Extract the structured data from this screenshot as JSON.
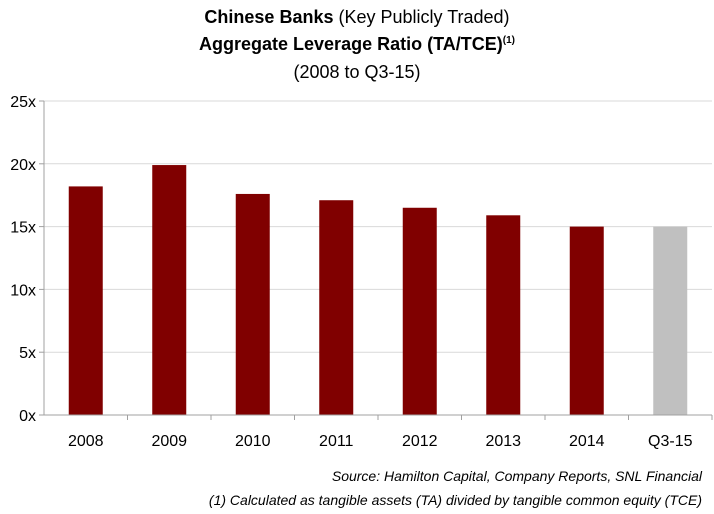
{
  "title": {
    "line1_bold": "Chinese Banks",
    "line1_rest": " (Key Publicly Traded)",
    "line2": "Aggregate Leverage Ratio (TA/TCE)",
    "line2_sup": "(1)",
    "line3": "(2008 to Q3-15)"
  },
  "chart_data": {
    "type": "bar",
    "categories": [
      "2008",
      "2009",
      "2010",
      "2011",
      "2012",
      "2013",
      "2014",
      "Q3-15"
    ],
    "values": [
      18.2,
      19.9,
      17.6,
      17.1,
      16.5,
      15.9,
      15.0,
      15.0
    ],
    "colors": [
      "#800000",
      "#800000",
      "#800000",
      "#800000",
      "#800000",
      "#800000",
      "#800000",
      "#c0c0c0"
    ],
    "yticks": [
      "0x",
      "5x",
      "10x",
      "15x",
      "20x",
      "25x"
    ],
    "ylim": [
      0,
      25
    ],
    "grid": true,
    "gridColor": "#d9d9d9",
    "axisColor": "#a0a0a0"
  },
  "footnotes": {
    "source": "Source: Hamilton Capital, Company Reports, SNL Financial",
    "note": "(1) Calculated as tangible assets (TA) divided by tangible common equity (TCE)"
  }
}
